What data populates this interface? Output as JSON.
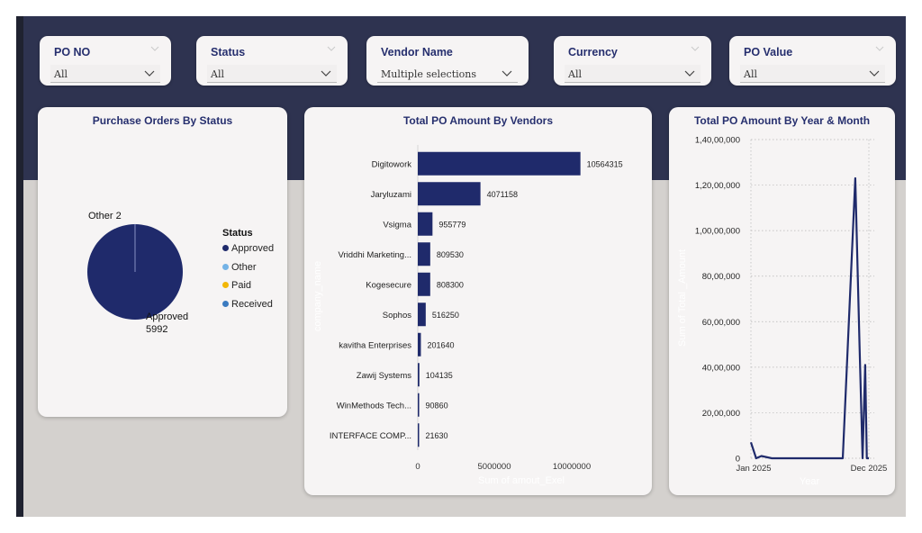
{
  "slicers": [
    {
      "title": "PO NO",
      "value": "All"
    },
    {
      "title": "Status",
      "value": "All"
    },
    {
      "title": "Vendor Name",
      "value": "Multiple selections"
    },
    {
      "title": "Currency",
      "value": "All"
    },
    {
      "title": "PO Value",
      "value": "All"
    }
  ],
  "status_chart": {
    "title": "Purchase Orders By Status",
    "legend_title": "Status",
    "legend": [
      {
        "label": "Approved",
        "color": "#1f2a6b"
      },
      {
        "label": "Other",
        "color": "#74b3e6"
      },
      {
        "label": "Paid",
        "color": "#f2b707"
      },
      {
        "label": "Received",
        "color": "#3b7bc0"
      }
    ],
    "label_other": "Other 2",
    "label_approved_name": "Approved",
    "label_approved_value": "5992"
  },
  "vendor_chart": {
    "title": "Total PO Amount By Vendors",
    "yaxis_title": "company_name",
    "xaxis_title": "Sum of amout_Exel",
    "xticks": [
      "0",
      "5000000",
      "10000000"
    ]
  },
  "trend_chart": {
    "title": "Total PO Amount By Year & Month",
    "yaxis_title": "Sum of Total _Amount",
    "xaxis_title": "Year",
    "xticks": [
      "Jan 2025",
      "Dec 2025"
    ],
    "yticks": [
      "0",
      "20,00,000",
      "40,00,000",
      "60,00,000",
      "80,00,000",
      "1,00,00,000",
      "1,20,00,000",
      "1,40,00,000"
    ]
  },
  "chart_data": [
    {
      "type": "pie",
      "title": "Purchase Orders By Status",
      "slices": [
        {
          "label": "Approved",
          "value": 5992
        },
        {
          "label": "Other",
          "value": 2
        },
        {
          "label": "Paid",
          "value": 0
        },
        {
          "label": "Received",
          "value": 0
        }
      ],
      "legend_placement": "right"
    },
    {
      "type": "bar",
      "title": "Total PO Amount By Vendors",
      "orientation": "horizontal",
      "categories": [
        "Digitowork",
        "Jaryluzami",
        "Vsigma",
        "Vriddhi Marketing...",
        "Kogesecure",
        "Sophos",
        "kavitha Enterprises",
        "Zawij Systems",
        "WinMethods Tech...",
        "INTERFACE COMP..."
      ],
      "values": [
        10564315,
        4071158,
        955779,
        809530,
        808300,
        516250,
        201640,
        104135,
        90860,
        21630
      ],
      "value_labels": [
        "10564315",
        "4071158",
        "955779",
        "809530",
        "808300",
        "516250",
        "201640",
        "104135",
        "90860",
        "21630"
      ],
      "xlabel": "Sum of amout_Exel",
      "ylabel": "company_name",
      "xlim": [
        0,
        12800000
      ],
      "color": "#1f2a6b"
    },
    {
      "type": "line",
      "title": "Total PO Amount By Year & Month",
      "x_start": "Jan 2025",
      "x_end": "Dec 2025",
      "x_months": [
        0,
        0.5,
        1,
        2,
        3,
        4,
        5,
        6,
        7,
        8,
        8.8,
        10,
        10.4,
        10.7,
        10.95,
        11.1,
        11.3
      ],
      "y": [
        700000,
        0,
        100000,
        0,
        0,
        0,
        0,
        0,
        0,
        0,
        0,
        12300000,
        5000000,
        0,
        4100000,
        0,
        0
      ],
      "xlabel": "Year",
      "ylabel": "Sum of Total _Amount",
      "ylim": [
        0,
        14000000
      ],
      "grid": true,
      "color": "#1f2a6b"
    }
  ]
}
